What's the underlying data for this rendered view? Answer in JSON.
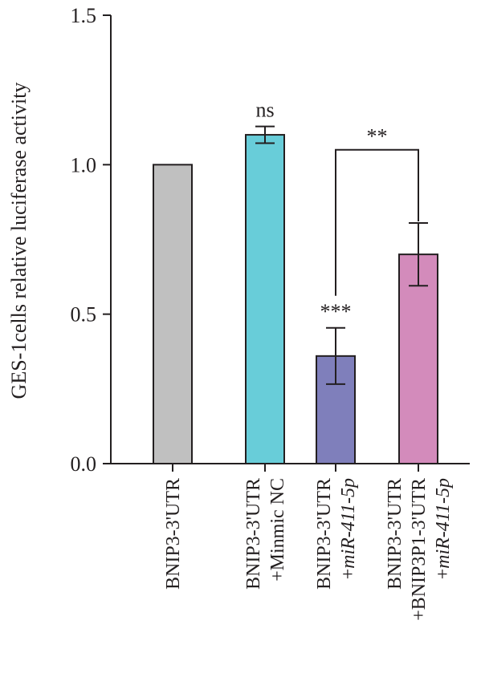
{
  "chart_data": {
    "type": "bar",
    "ylabel": "GES-1cells relative luciferase activity",
    "ylim": [
      0,
      1.5
    ],
    "yticks": [
      "0.0",
      "0.5",
      "1.0",
      "1.5"
    ],
    "ytick_values": [
      0,
      0.5,
      1.0,
      1.5
    ],
    "categories": [
      {
        "line1": "BNIP3-3'UTR",
        "line2": "",
        "line2_italic": ""
      },
      {
        "line1": "BNIP3-3'UTR",
        "line2": "+Minmic NC",
        "line2_italic": ""
      },
      {
        "line1": "BNIP3-3'UTR",
        "line2": "+",
        "line2_italic": "miR-411-5p"
      },
      {
        "line1": "BNIP3-3'UTR",
        "line2": "+BNIP3P1-3'UTR",
        "line3_prefix": "+",
        "line3_italic": "miR-411-5p"
      }
    ],
    "values": [
      1.0,
      1.1,
      0.36,
      0.7
    ],
    "errors": [
      null,
      0.028,
      0.094,
      0.105
    ],
    "colors": [
      "#c0c0c0",
      "#68cdd9",
      "#7f7fbb",
      "#d38bbb"
    ],
    "annotations": [
      {
        "bar": 1,
        "text": "ns"
      },
      {
        "bar": 2,
        "text": "***"
      }
    ],
    "brackets": [
      {
        "from": 2,
        "to": 3,
        "text": "**",
        "level": 1.05
      }
    ]
  }
}
